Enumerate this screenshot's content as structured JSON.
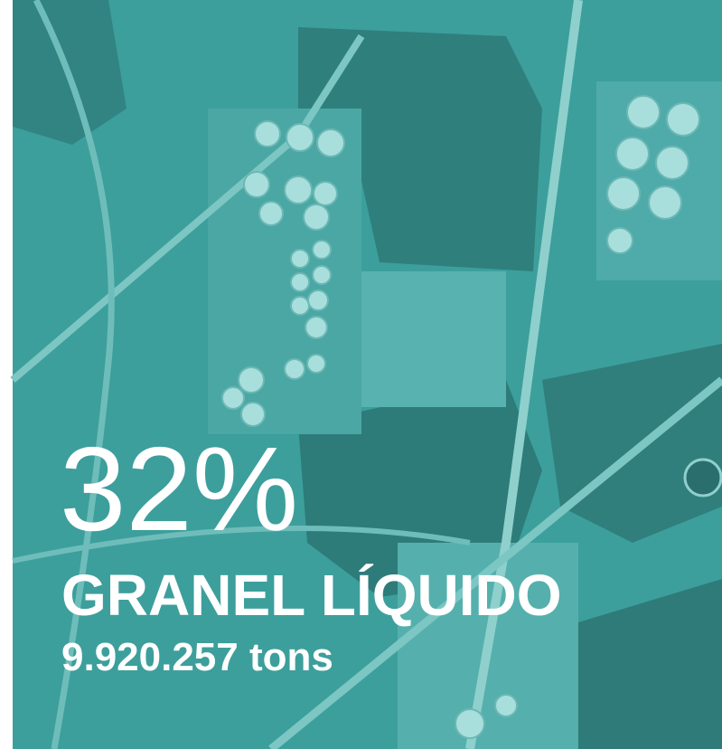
{
  "headline": "32%",
  "title": "GRANEL LÍQUIDO",
  "subtitle": "9.920.257 tons"
}
